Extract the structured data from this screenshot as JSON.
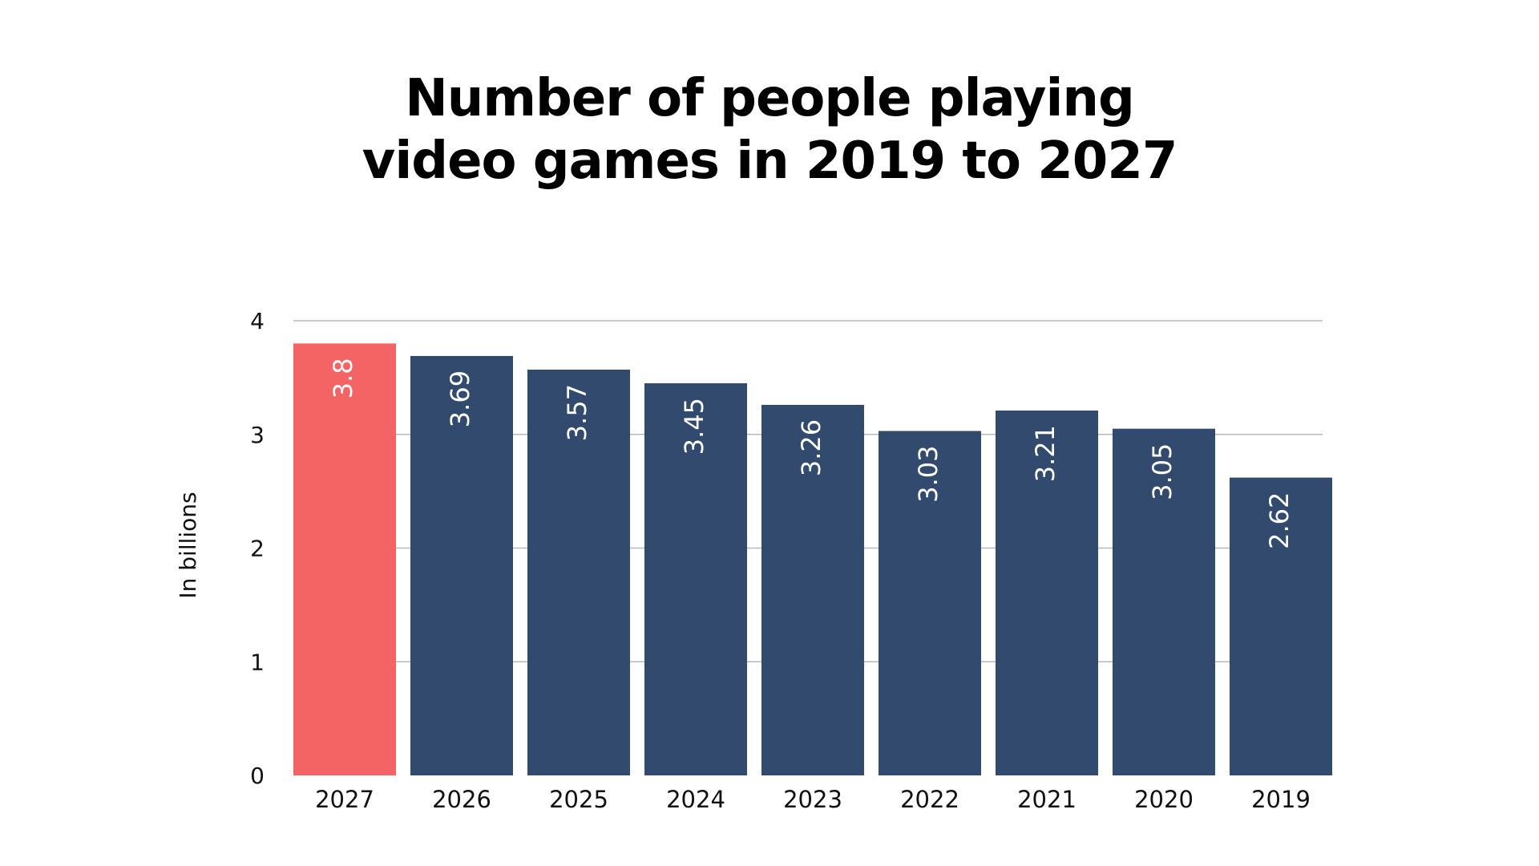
{
  "chart_data": {
    "type": "bar",
    "title_line1": "Number of people playing",
    "title_line2": "video games in 2019 to 2027",
    "xlabel": "",
    "ylabel": "In billions",
    "ylim": [
      0,
      4
    ],
    "yticks": [
      0,
      1,
      2,
      3,
      4
    ],
    "grid": true,
    "categories": [
      "2027",
      "2026",
      "2025",
      "2024",
      "2023",
      "2022",
      "2021",
      "2020",
      "2019"
    ],
    "values": [
      3.8,
      3.69,
      3.57,
      3.45,
      3.26,
      3.03,
      3.21,
      3.05,
      2.62
    ],
    "value_labels": [
      "3.8",
      "3.69",
      "3.57",
      "3.45",
      "3.26",
      "3.03",
      "3.21",
      "3.05",
      "2.62"
    ],
    "highlight_index": 0,
    "colors": {
      "highlight": "#f46464",
      "bar": "#324a6e",
      "grid": "#b8b8b8",
      "label": "#ffffff"
    }
  }
}
